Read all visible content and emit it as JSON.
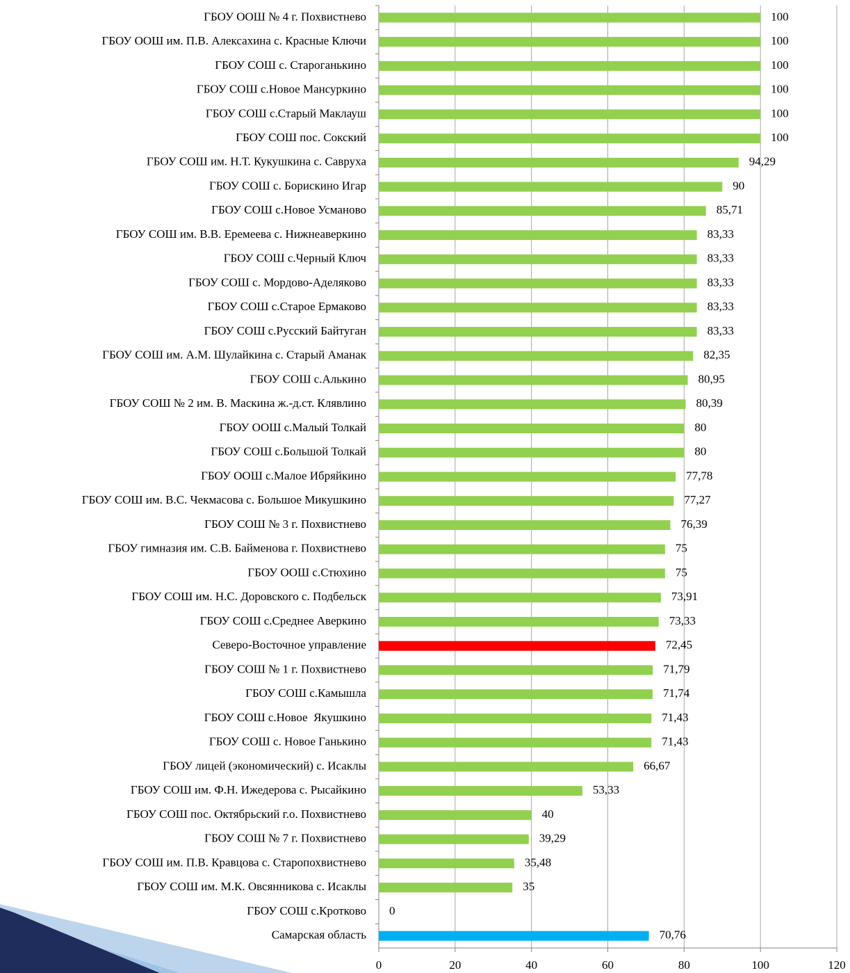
{
  "chart_data": {
    "type": "hbar",
    "categories": [
      "ГБОУ ООШ № 4 г. Похвистнево",
      "ГБОУ ООШ им. П.В. Алексахина с. Красные Ключи",
      "ГБОУ СОШ с. Староганькино",
      "ГБОУ СОШ с.Новое Мансуркино",
      "ГБОУ СОШ с.Старый Маклауш",
      "ГБОУ СОШ пос. Сокский",
      "ГБОУ СОШ им. Н.Т. Кукушкина с. Савруха",
      "ГБОУ СОШ с. Борискино Игар",
      "ГБОУ СОШ с.Новое Усманово",
      "ГБОУ СОШ им. В.В. Еремеева с. Нижнеаверкино",
      "ГБОУ СОШ с.Черный Ключ",
      "ГБОУ СОШ с. Мордово-Аделяково",
      "ГБОУ СОШ с.Старое Ермаково",
      "ГБОУ СОШ с.Русский Байтуган",
      "ГБОУ СОШ им. А.М. Шулайкина с. Старый Аманак",
      "ГБОУ СОШ с.Алькино",
      "ГБОУ СОШ № 2 им. В. Маскина ж.-д.ст. Клявлино",
      "ГБОУ ООШ с.Малый Толкай",
      "ГБОУ СОШ с.Большой Толкай",
      "ГБОУ ООШ с.Малое Ибряйкино",
      "ГБОУ СОШ им. В.С. Чекмасова с. Большое Микушкино",
      "ГБОУ СОШ № 3 г. Похвистнево",
      "ГБОУ гимназия им. С.В. Байменова г. Похвистнево",
      "ГБОУ ООШ с.Стюхино",
      "ГБОУ СОШ им. Н.С. Доровского с. Подбельск",
      "ГБОУ СОШ с.Среднее Аверкино",
      "Северо-Восточное управление",
      "ГБОУ СОШ № 1 г. Похвистнево",
      "ГБОУ СОШ с.Камышла",
      "ГБОУ СОШ с.Новое  Якушкино",
      "ГБОУ СОШ с. Новое Ганькино",
      "ГБОУ лицей (экономический) с. Исаклы",
      "ГБОУ СОШ им. Ф.Н. Ижедерова с. Рысайкино",
      "ГБОУ СОШ пос. Октябрьский г.о. Похвистнево",
      "ГБОУ СОШ № 7 г. Похвистнево",
      "ГБОУ СОШ им. П.В. Кравцова с. Старопохвистнево",
      "ГБОУ СОШ им. М.К. Овсянникова с. Исаклы",
      "ГБОУ СОШ с.Кротково",
      "Самарская область"
    ],
    "values": [
      100,
      100,
      100,
      100,
      100,
      100,
      94.29,
      90,
      85.71,
      83.33,
      83.33,
      83.33,
      83.33,
      83.33,
      82.35,
      80.95,
      80.39,
      80,
      80,
      77.78,
      77.27,
      76.39,
      75,
      75,
      73.91,
      73.33,
      72.45,
      71.79,
      71.74,
      71.43,
      71.43,
      66.67,
      53.33,
      40,
      39.29,
      35.48,
      35,
      0,
      70.76
    ],
    "value_labels": [
      "100",
      "100",
      "100",
      "100",
      "100",
      "100",
      "94,29",
      "90",
      "85,71",
      "83,33",
      "83,33",
      "83,33",
      "83,33",
      "83,33",
      "82,35",
      "80,95",
      "80,39",
      "80",
      "80",
      "77,78",
      "77,27",
      "76,39",
      "75",
      "75",
      "73,91",
      "73,33",
      "72,45",
      "71,79",
      "71,74",
      "71,43",
      "71,43",
      "66,67",
      "53,33",
      "40",
      "39,29",
      "35,48",
      "35",
      "0",
      "70,76"
    ],
    "colors": [
      "#92d050",
      "#92d050",
      "#92d050",
      "#92d050",
      "#92d050",
      "#92d050",
      "#92d050",
      "#92d050",
      "#92d050",
      "#92d050",
      "#92d050",
      "#92d050",
      "#92d050",
      "#92d050",
      "#92d050",
      "#92d050",
      "#92d050",
      "#92d050",
      "#92d050",
      "#92d050",
      "#92d050",
      "#92d050",
      "#92d050",
      "#92d050",
      "#92d050",
      "#92d050",
      "#ff0000",
      "#92d050",
      "#92d050",
      "#92d050",
      "#92d050",
      "#92d050",
      "#92d050",
      "#92d050",
      "#92d050",
      "#92d050",
      "#92d050",
      "#92d050",
      "#00b0f0"
    ],
    "xlim": [
      0,
      120
    ],
    "xticks": [
      0,
      20,
      40,
      60,
      80,
      100,
      120
    ],
    "grid": true
  }
}
